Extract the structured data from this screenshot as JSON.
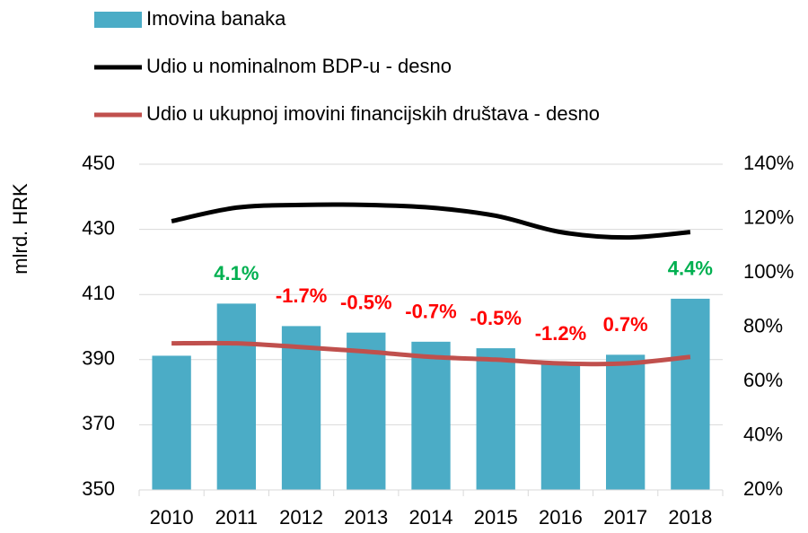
{
  "chart_data": {
    "type": "bar_line",
    "ylabel": "mlrd. HRK",
    "categories": [
      "2010",
      "2011",
      "2012",
      "2013",
      "2014",
      "2015",
      "2016",
      "2017",
      "2018"
    ],
    "series": [
      {
        "name": "Imovina banaka",
        "type": "bar",
        "color": "#4bacc6",
        "values": [
          391.2,
          407.2,
          400.3,
          398.3,
          395.5,
          393.5,
          388.8,
          391.5,
          408.7
        ]
      },
      {
        "name": "Udio u nominalnom BDP-u - desno",
        "type": "line",
        "axis": "y2",
        "color": "#000000",
        "values": [
          119,
          124,
          125,
          125,
          124,
          121,
          115,
          113,
          115
        ]
      },
      {
        "name": "Udio u ukupnoj imovini financijskih društava - desno",
        "type": "line",
        "axis": "y2",
        "color": "#c0504d",
        "values": [
          74,
          74,
          72.6,
          71,
          69,
          68,
          66.6,
          66.6,
          69
        ]
      }
    ],
    "change_labels": [
      null,
      "4.1%",
      "-1.7%",
      "-0.5%",
      "-0.7%",
      "-0.5%",
      "-1.2%",
      "0.7%",
      "4.4%"
    ],
    "change_label_colors": [
      null,
      "#00b050",
      "#ff0000",
      "#ff0000",
      "#ff0000",
      "#ff0000",
      "#ff0000",
      "#ff0000",
      "#00b050"
    ],
    "ylim": [
      350,
      450
    ],
    "yticks": [
      350,
      370,
      390,
      410,
      430,
      450
    ],
    "y2lim": [
      20,
      140
    ],
    "y2ticks": [
      {
        "value": 20,
        "label": "20%"
      },
      {
        "value": 40,
        "label": "40%"
      },
      {
        "value": 60,
        "label": "60%"
      },
      {
        "value": 80,
        "label": "80%"
      },
      {
        "value": 100,
        "label": "100%"
      },
      {
        "value": 120,
        "label": "120%"
      },
      {
        "value": 140,
        "label": "140%"
      }
    ],
    "grid": true,
    "legend": "top"
  }
}
